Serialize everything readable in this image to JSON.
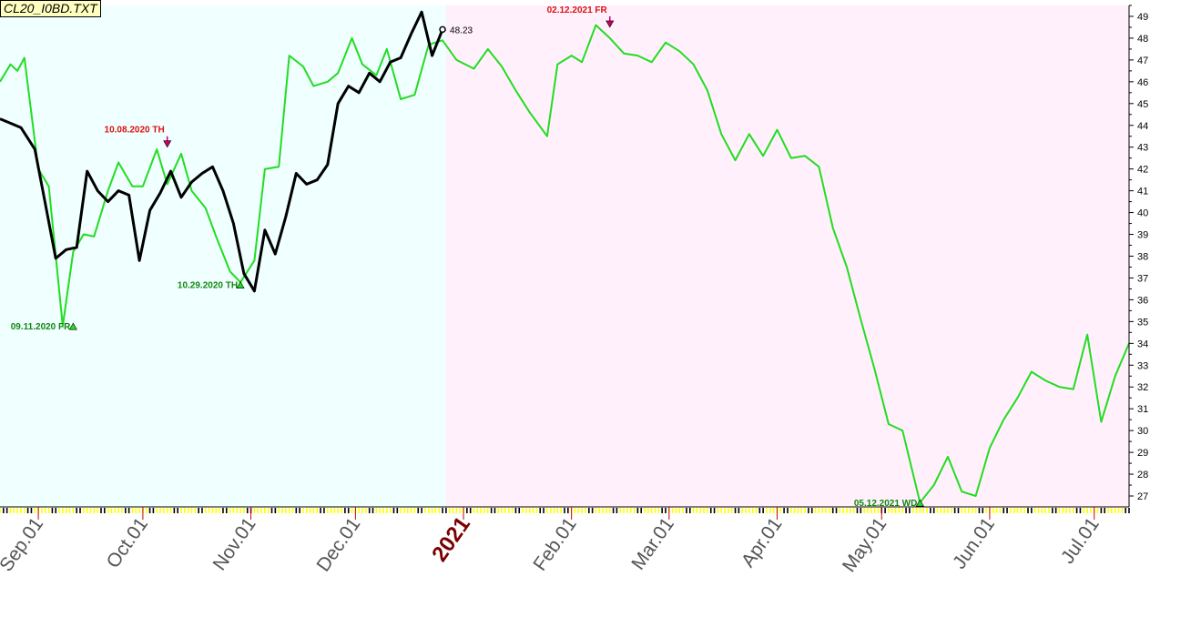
{
  "file_label": "CL20_I0BD.TXT",
  "chart_data": {
    "type": "line",
    "title": "",
    "xlabel": "",
    "ylabel": "",
    "y_axis_position": "right",
    "ylim": [
      26.5,
      49.5
    ],
    "y_ticks": [
      27,
      28,
      29,
      30,
      31,
      32,
      33,
      34,
      35,
      36,
      37,
      38,
      39,
      40,
      41,
      42,
      43,
      44,
      45,
      46,
      47,
      48,
      49
    ],
    "colors": {
      "green_line": "#22dd22",
      "black_line": "#000000",
      "bg_history": "#f0ffff",
      "bg_forecast": "#fff0fb",
      "label_red": "#dd1111",
      "label_green": "#118811",
      "year_label": "#7a0000",
      "month_label": "#555555",
      "tick_yellow": "#ffff00"
    },
    "x_axis": {
      "labels": [
        "Sep.01",
        "Oct.01",
        "Nov.01",
        "Dec.01",
        "2021",
        "Feb.01",
        "Mar.01",
        "Apr.01",
        "May.01",
        "Jun.01",
        "Jul.01"
      ],
      "year_label": "2021"
    },
    "series": [
      {
        "role": "forecast",
        "x": [
          "2020-08-21",
          "2020-08-24",
          "2020-08-26",
          "2020-08-28",
          "2020-09-01",
          "2020-09-04",
          "2020-09-08",
          "2020-09-11",
          "2020-09-14",
          "2020-09-17",
          "2020-09-21",
          "2020-09-24",
          "2020-09-28",
          "2020-10-01",
          "2020-10-05",
          "2020-10-08",
          "2020-10-12",
          "2020-10-15",
          "2020-10-19",
          "2020-10-22",
          "2020-10-26",
          "2020-10-29",
          "2020-11-02",
          "2020-11-05",
          "2020-11-09",
          "2020-11-12",
          "2020-11-16",
          "2020-11-19",
          "2020-11-23",
          "2020-11-26",
          "2020-11-30",
          "2020-12-03",
          "2020-12-07",
          "2020-12-10",
          "2020-12-14",
          "2020-12-18",
          "2020-12-22",
          "2020-12-26",
          "2020-12-30",
          "2021-01-04",
          "2021-01-08",
          "2021-01-12",
          "2021-01-16",
          "2021-01-20",
          "2021-01-25",
          "2021-01-28",
          "2021-02-01",
          "2021-02-04",
          "2021-02-08",
          "2021-02-12",
          "2021-02-16",
          "2021-02-20",
          "2021-02-24",
          "2021-02-28",
          "2021-03-04",
          "2021-03-08",
          "2021-03-12",
          "2021-03-16",
          "2021-03-20",
          "2021-03-24",
          "2021-03-28",
          "2021-04-01",
          "2021-04-05",
          "2021-04-09",
          "2021-04-13",
          "2021-04-17",
          "2021-04-21",
          "2021-04-25",
          "2021-04-29",
          "2021-05-03",
          "2021-05-07",
          "2021-05-12",
          "2021-05-16",
          "2021-05-20",
          "2021-05-24",
          "2021-05-28",
          "2021-06-01",
          "2021-06-05",
          "2021-06-09",
          "2021-06-13",
          "2021-06-17",
          "2021-06-21",
          "2021-06-25",
          "2021-06-29",
          "2021-07-03",
          "2021-07-07",
          "2021-07-11"
        ],
        "values": [
          46.0,
          46.8,
          46.5,
          47.1,
          42.0,
          41.2,
          34.8,
          38.2,
          39.0,
          38.9,
          41.0,
          42.3,
          41.2,
          41.2,
          42.9,
          41.3,
          42.7,
          41.0,
          40.2,
          38.9,
          37.3,
          36.8,
          37.8,
          42.0,
          42.1,
          47.2,
          46.7,
          45.8,
          46.0,
          46.4,
          48.0,
          46.8,
          46.3,
          47.5,
          45.2,
          45.4,
          47.7,
          47.9,
          47.0,
          46.6,
          47.5,
          46.7,
          45.6,
          44.6,
          43.5,
          46.8,
          47.2,
          46.9,
          48.6,
          48.0,
          47.3,
          47.2,
          46.9,
          47.8,
          47.4,
          46.8,
          45.6,
          43.6,
          42.4,
          43.6,
          42.6,
          43.8,
          42.5,
          42.6,
          42.1,
          39.3,
          37.5,
          35.1,
          32.8,
          30.3,
          30.0,
          26.7,
          27.5,
          28.8,
          27.2,
          27.0,
          29.2,
          30.5,
          31.5,
          32.7,
          32.3,
          32.0,
          31.9,
          34.4,
          30.4,
          32.5,
          34.0
        ]
      },
      {
        "role": "actual",
        "x": [
          "2020-08-21",
          "2020-08-24",
          "2020-08-27",
          "2020-08-31",
          "2020-09-03",
          "2020-09-06",
          "2020-09-09",
          "2020-09-12",
          "2020-09-15",
          "2020-09-18",
          "2020-09-21",
          "2020-09-24",
          "2020-09-27",
          "2020-09-30",
          "2020-10-03",
          "2020-10-06",
          "2020-10-09",
          "2020-10-12",
          "2020-10-15",
          "2020-10-18",
          "2020-10-21",
          "2020-10-24",
          "2020-10-27",
          "2020-10-30",
          "2020-11-02",
          "2020-11-05",
          "2020-11-08",
          "2020-11-11",
          "2020-11-14",
          "2020-11-17",
          "2020-11-20",
          "2020-11-23",
          "2020-11-26",
          "2020-11-29",
          "2020-12-02",
          "2020-12-05",
          "2020-12-08",
          "2020-12-11",
          "2020-12-14",
          "2020-12-17",
          "2020-12-20",
          "2020-12-23",
          "2020-12-26"
        ],
        "values": [
          44.3,
          44.1,
          43.9,
          42.9,
          40.4,
          37.9,
          38.3,
          38.4,
          41.9,
          41.0,
          40.5,
          41.0,
          40.8,
          37.8,
          40.1,
          40.9,
          41.9,
          40.7,
          41.4,
          41.8,
          42.1,
          41.0,
          39.5,
          37.2,
          36.4,
          39.2,
          38.1,
          39.8,
          41.8,
          41.3,
          41.5,
          42.2,
          45.0,
          45.8,
          45.5,
          46.4,
          46.0,
          46.9,
          47.1,
          48.2,
          49.2,
          47.2,
          48.4
        ]
      }
    ],
    "last_value_label": "48.23",
    "annotations": [
      {
        "text": "10.08.2020 TH",
        "x": "2020-10-08",
        "y": 43.0,
        "kind": "top"
      },
      {
        "text": "10.29.2020 TH",
        "x": "2020-10-29",
        "y": 36.7,
        "kind": "bottom"
      },
      {
        "text": "09.11.2020 FR",
        "x": "2020-09-11",
        "y": 34.8,
        "kind": "bottom"
      },
      {
        "text": "02.12.2021 FR",
        "x": "2021-02-12",
        "y": 48.5,
        "kind": "top"
      },
      {
        "text": "05.12.2021 WD",
        "x": "2021-05-12",
        "y": 26.7,
        "kind": "bottom"
      }
    ],
    "forecast_start": "2020-12-27",
    "grid": false,
    "legend": "none"
  }
}
